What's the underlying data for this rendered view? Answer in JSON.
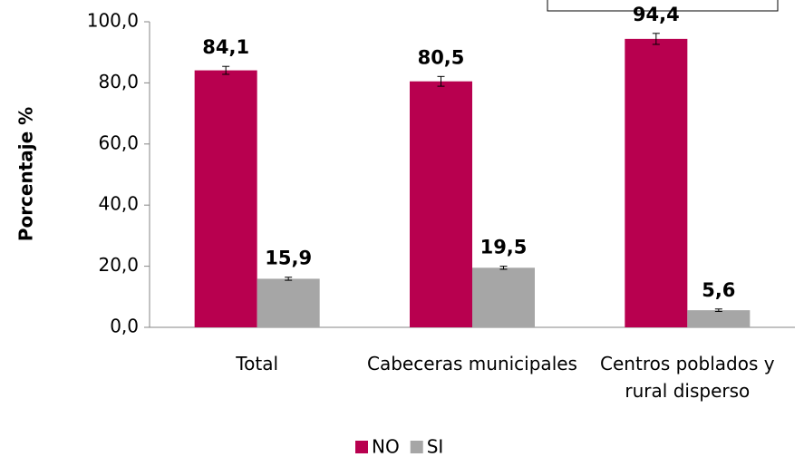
{
  "chart_data": {
    "type": "bar",
    "categories": [
      "Total",
      "Cabeceras municipales",
      "Centros poblados y rural disperso"
    ],
    "series": [
      {
        "name": "NO",
        "color": "#b8004f",
        "values": [
          84.1,
          80.5,
          94.4
        ],
        "value_labels": [
          "84,1",
          "80,5",
          "94,4"
        ],
        "errors": [
          1.3,
          1.6,
          1.8
        ]
      },
      {
        "name": "SI",
        "color": "#a6a6a6",
        "values": [
          15.9,
          19.5,
          5.6
        ],
        "value_labels": [
          "15,9",
          "19,5",
          "5,6"
        ],
        "errors": [
          0.5,
          0.5,
          0.4
        ]
      }
    ],
    "y_label": "Porcentaje %",
    "ylim": [
      0,
      100
    ],
    "yticks": [
      {
        "value": 0,
        "label": "0,0"
      },
      {
        "value": 20,
        "label": "20,0"
      },
      {
        "value": 40,
        "label": "40,0"
      },
      {
        "value": 60,
        "label": "60,0"
      },
      {
        "value": 80,
        "label": "80,0"
      },
      {
        "value": 100,
        "label": "100,0"
      }
    ],
    "legend": "bottom"
  }
}
